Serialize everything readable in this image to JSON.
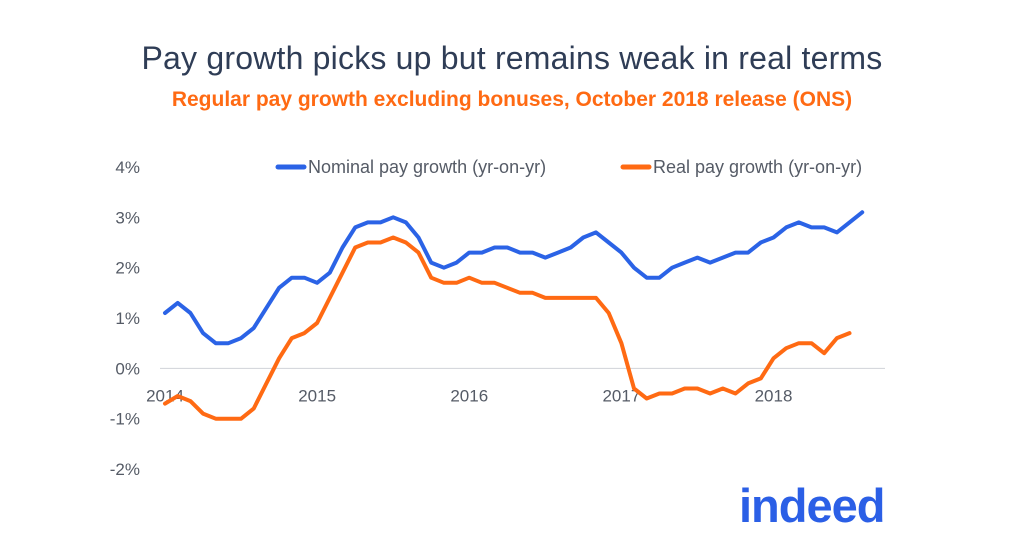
{
  "chart_data": {
    "type": "line",
    "title": "Pay growth picks up but remains weak in real terms",
    "subtitle": "Regular pay growth excluding bonuses, October 2018 release (ONS)",
    "xlabel": "",
    "ylabel": "",
    "ylim": [
      -2,
      4
    ],
    "yticks": [
      -2,
      -1,
      0,
      1,
      2,
      3,
      4
    ],
    "ytick_labels": [
      "-2%",
      "-1%",
      "0%",
      "1%",
      "2%",
      "3%",
      "4%"
    ],
    "x_start": 2014.0,
    "x_step": 0.08333,
    "x_range": [
      2014.0,
      2018.7
    ],
    "xticks": [
      2014,
      2015,
      2016,
      2017,
      2018
    ],
    "xtick_labels": [
      "2014",
      "2015",
      "2016",
      "2017",
      "2018"
    ],
    "legend_position": "top",
    "series": [
      {
        "name": "Nominal pay growth (yr-on-yr)",
        "color": "#2b63e6",
        "values": [
          1.1,
          1.3,
          1.1,
          0.7,
          0.5,
          0.5,
          0.6,
          0.8,
          1.2,
          1.6,
          1.8,
          1.8,
          1.7,
          1.9,
          2.4,
          2.8,
          2.9,
          2.9,
          3.0,
          2.9,
          2.6,
          2.1,
          2.0,
          2.1,
          2.3,
          2.3,
          2.4,
          2.4,
          2.3,
          2.3,
          2.2,
          2.3,
          2.4,
          2.6,
          2.7,
          2.5,
          2.3,
          2.0,
          1.8,
          1.8,
          2.0,
          2.1,
          2.2,
          2.1,
          2.2,
          2.3,
          2.3,
          2.5,
          2.6,
          2.8,
          2.9,
          2.8,
          2.8,
          2.7,
          2.9,
          3.1
        ]
      },
      {
        "name": "Real pay growth (yr-on-yr)",
        "color": "#ff6a13",
        "values": [
          -0.7,
          -0.55,
          -0.65,
          -0.9,
          -1.0,
          -1.0,
          -1.0,
          -0.8,
          -0.3,
          0.2,
          0.6,
          0.7,
          0.9,
          1.4,
          1.9,
          2.4,
          2.5,
          2.5,
          2.6,
          2.5,
          2.3,
          1.8,
          1.7,
          1.7,
          1.8,
          1.7,
          1.7,
          1.6,
          1.5,
          1.5,
          1.4,
          1.4,
          1.4,
          1.4,
          1.4,
          1.1,
          0.5,
          -0.4,
          -0.6,
          -0.5,
          -0.5,
          -0.4,
          -0.4,
          -0.5,
          -0.4,
          -0.5,
          -0.3,
          -0.2,
          0.2,
          0.4,
          0.5,
          0.5,
          0.3,
          0.6,
          0.7
        ]
      }
    ]
  },
  "brand": {
    "logo_text": "indeed",
    "color": "#2b5fe6"
  }
}
